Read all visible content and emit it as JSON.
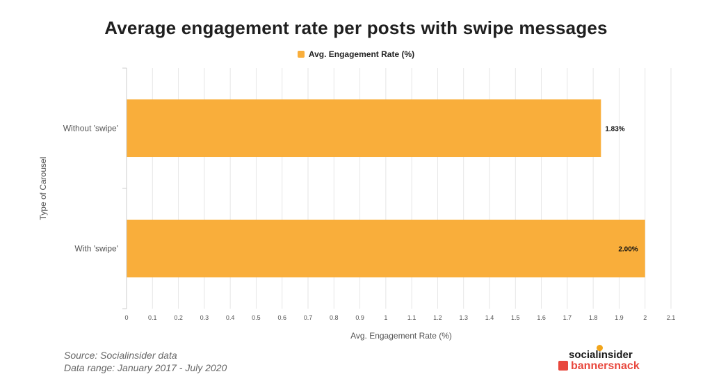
{
  "chart_data": {
    "type": "bar",
    "orientation": "horizontal",
    "title": "Average engagement rate per posts with swipe messages",
    "legend": [
      {
        "name": "Avg. Engagement Rate (%)",
        "color": "#f9ae3b"
      }
    ],
    "categories": [
      "Without 'swipe'",
      "With 'swipe'"
    ],
    "values": [
      1.83,
      2.0
    ],
    "data_labels": [
      "1.83%",
      "2.00%"
    ],
    "xlabel": "Avg. Engagement Rate (%)",
    "ylabel": "Type of Carousel",
    "xlim": [
      0,
      2.1
    ],
    "xticks": [
      0,
      0.1,
      0.2,
      0.3,
      0.4,
      0.5,
      0.6,
      0.7,
      0.8,
      0.9,
      1,
      1.1,
      1.2,
      1.3,
      1.4,
      1.5,
      1.6,
      1.7,
      1.8,
      1.9,
      2,
      2.1
    ],
    "grid": true
  },
  "footer": {
    "source": "Source: Socialinsider data",
    "range": "Data range: January 2017 - July 2020"
  },
  "branding": {
    "socialinsider": "socialinsider",
    "bannersnack": "bannersnack"
  }
}
